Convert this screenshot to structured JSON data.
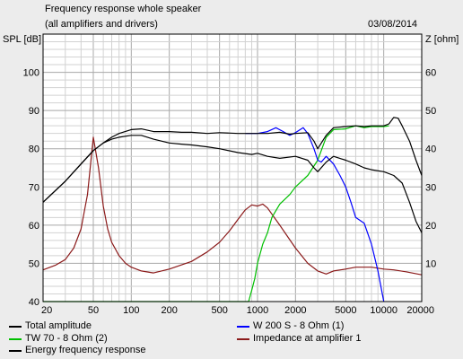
{
  "header": {
    "title": "Frequency response whole speaker",
    "subtitle": "(all amplifiers and drivers)",
    "date": "03/08/2014"
  },
  "chart_data": {
    "type": "line",
    "title": "Frequency response whole speaker",
    "subtitle": "(all amplifiers and drivers)",
    "xscale": "log",
    "xlim": [
      20,
      20000
    ],
    "ylim": [
      40,
      110
    ],
    "y2lim": [
      0,
      70
    ],
    "ylabel": "SPL [dB]",
    "y2label": "Z [ohm]",
    "grid": true,
    "legend_position": "bottom",
    "x_ticks": [
      20,
      50,
      100,
      200,
      500,
      1000,
      2000,
      5000,
      10000,
      20000
    ],
    "x_tick_labels": [
      "20",
      "50",
      "100",
      "200",
      "500",
      "1000",
      "2000",
      "5000",
      "10000",
      "20000"
    ],
    "y_ticks": [
      40,
      50,
      60,
      70,
      80,
      90,
      100
    ],
    "y_tick_labels": [
      "40",
      "50",
      "60",
      "70",
      "80",
      "90",
      "100"
    ],
    "y2_ticks": [
      10,
      20,
      30,
      40,
      50,
      60
    ],
    "y2_tick_labels": [
      "10",
      "20",
      "30",
      "40",
      "50",
      "60"
    ],
    "series": [
      {
        "name": "Total amplitude",
        "color": "#000000",
        "axis": "left",
        "points": [
          [
            20,
            66
          ],
          [
            30,
            71.5
          ],
          [
            40,
            76
          ],
          [
            50,
            79.5
          ],
          [
            60,
            81.5
          ],
          [
            70,
            83
          ],
          [
            80,
            84
          ],
          [
            100,
            85
          ],
          [
            120,
            85.2
          ],
          [
            150,
            84.5
          ],
          [
            200,
            84.5
          ],
          [
            250,
            84.3
          ],
          [
            300,
            84.3
          ],
          [
            400,
            84
          ],
          [
            500,
            84.2
          ],
          [
            700,
            84
          ],
          [
            900,
            84
          ],
          [
            1000,
            84
          ],
          [
            1200,
            84
          ],
          [
            1500,
            84.3
          ],
          [
            1800,
            83.8
          ],
          [
            2000,
            84
          ],
          [
            2500,
            84.2
          ],
          [
            2800,
            82
          ],
          [
            3000,
            80
          ],
          [
            3500,
            83.5
          ],
          [
            4000,
            85.5
          ],
          [
            5000,
            85.8
          ],
          [
            6000,
            86
          ],
          [
            7000,
            85.8
          ],
          [
            8000,
            86
          ],
          [
            10000,
            86
          ],
          [
            11000,
            86.5
          ],
          [
            12000,
            88.2
          ],
          [
            13000,
            88
          ],
          [
            14000,
            86
          ],
          [
            16000,
            82
          ],
          [
            18000,
            77
          ],
          [
            20000,
            73
          ]
        ]
      },
      {
        "name": "TW 70 - 8 Ohm (2)",
        "color": "#00c000",
        "axis": "left",
        "points": [
          [
            20,
            40
          ],
          [
            850,
            40
          ],
          [
            900,
            43
          ],
          [
            950,
            46
          ],
          [
            1000,
            50
          ],
          [
            1100,
            55
          ],
          [
            1200,
            58
          ],
          [
            1300,
            62
          ],
          [
            1500,
            65.5
          ],
          [
            1800,
            68
          ],
          [
            2000,
            70
          ],
          [
            2500,
            73
          ],
          [
            3000,
            77
          ],
          [
            3500,
            83
          ],
          [
            4000,
            85
          ],
          [
            5000,
            85.2
          ],
          [
            6000,
            86
          ],
          [
            7000,
            85.5
          ],
          [
            8000,
            85.8
          ],
          [
            10000,
            85.8
          ],
          [
            11000,
            86
          ]
        ]
      },
      {
        "name": "Energy frequency response",
        "color": "#000000",
        "axis": "left",
        "points": [
          [
            20,
            66
          ],
          [
            30,
            71.5
          ],
          [
            40,
            76
          ],
          [
            50,
            79.5
          ],
          [
            60,
            81.5
          ],
          [
            70,
            82.5
          ],
          [
            80,
            83
          ],
          [
            100,
            83.5
          ],
          [
            120,
            83.5
          ],
          [
            150,
            82.5
          ],
          [
            200,
            81.5
          ],
          [
            250,
            81.2
          ],
          [
            300,
            81
          ],
          [
            400,
            80.5
          ],
          [
            500,
            80
          ],
          [
            700,
            79
          ],
          [
            900,
            78.5
          ],
          [
            1000,
            78.8
          ],
          [
            1200,
            78
          ],
          [
            1500,
            77.5
          ],
          [
            2000,
            78
          ],
          [
            2500,
            77
          ],
          [
            2800,
            75
          ],
          [
            3000,
            74
          ],
          [
            3500,
            76.5
          ],
          [
            4000,
            78
          ],
          [
            5000,
            77
          ],
          [
            6000,
            76
          ],
          [
            7000,
            75
          ],
          [
            8000,
            74.5
          ],
          [
            10000,
            74
          ],
          [
            12000,
            73
          ],
          [
            14000,
            71
          ],
          [
            16000,
            66
          ],
          [
            18000,
            61
          ],
          [
            20000,
            58
          ]
        ]
      },
      {
        "name": "W 200 S - 8 Ohm (1)",
        "color": "#0000ff",
        "axis": "left",
        "points": [
          [
            800,
            84
          ],
          [
            1000,
            84
          ],
          [
            1200,
            84.5
          ],
          [
            1400,
            85.5
          ],
          [
            1600,
            84.5
          ],
          [
            1800,
            83.5
          ],
          [
            2000,
            84.2
          ],
          [
            2300,
            85.5
          ],
          [
            2500,
            84
          ],
          [
            2800,
            80
          ],
          [
            3000,
            77
          ],
          [
            3200,
            76.5
          ],
          [
            3500,
            78
          ],
          [
            4000,
            76
          ],
          [
            4500,
            73
          ],
          [
            5000,
            70
          ],
          [
            5500,
            66
          ],
          [
            6000,
            62
          ],
          [
            7000,
            60.5
          ],
          [
            8000,
            55
          ],
          [
            9000,
            48
          ],
          [
            10000,
            40
          ]
        ]
      },
      {
        "name": "Impedance at amplifier 1",
        "color": "#8b1a1a",
        "axis": "right",
        "points": [
          [
            20,
            8.3
          ],
          [
            25,
            9.5
          ],
          [
            30,
            11
          ],
          [
            35,
            14
          ],
          [
            40,
            19
          ],
          [
            45,
            28
          ],
          [
            50,
            43
          ],
          [
            55,
            35
          ],
          [
            60,
            25
          ],
          [
            65,
            19
          ],
          [
            70,
            15.5
          ],
          [
            80,
            12
          ],
          [
            90,
            10
          ],
          [
            100,
            9
          ],
          [
            120,
            8
          ],
          [
            150,
            7.5
          ],
          [
            200,
            8.5
          ],
          [
            300,
            10.5
          ],
          [
            400,
            13
          ],
          [
            500,
            15.5
          ],
          [
            600,
            18.5
          ],
          [
            700,
            21.5
          ],
          [
            800,
            24
          ],
          [
            900,
            25.3
          ],
          [
            1000,
            25
          ],
          [
            1100,
            25.5
          ],
          [
            1200,
            24.5
          ],
          [
            1500,
            20
          ],
          [
            2000,
            14
          ],
          [
            2500,
            10
          ],
          [
            3000,
            8
          ],
          [
            3500,
            7.2
          ],
          [
            4000,
            8
          ],
          [
            5000,
            8.5
          ],
          [
            6000,
            9
          ],
          [
            8000,
            9
          ],
          [
            10000,
            8.5
          ],
          [
            12000,
            8.3
          ],
          [
            15000,
            7.8
          ],
          [
            20000,
            7
          ]
        ]
      }
    ]
  },
  "legend": [
    {
      "label": "Total amplitude",
      "color": "#000000"
    },
    {
      "label": "TW 70 - 8 Ohm (2)",
      "color": "#00c000"
    },
    {
      "label": "Energy frequency response",
      "color": "#000000"
    },
    {
      "label": "W 200 S - 8 Ohm (1)",
      "color": "#0000ff"
    },
    {
      "label": "Impedance at amplifier 1",
      "color": "#8b1a1a"
    }
  ]
}
